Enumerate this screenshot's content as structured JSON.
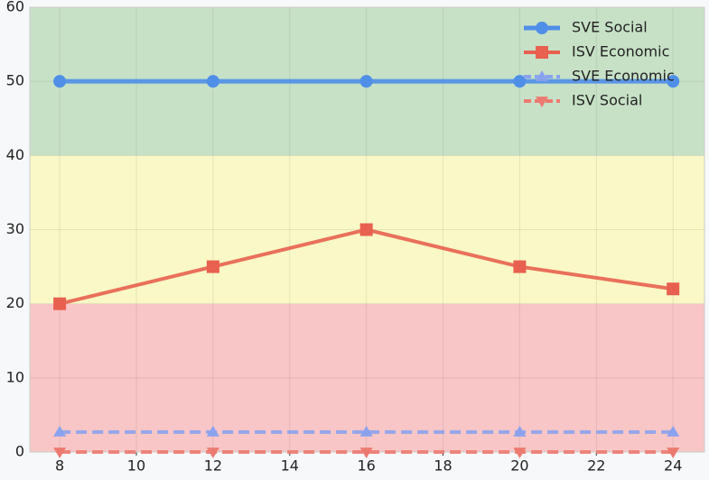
{
  "chart_data": {
    "type": "line",
    "x": [
      8,
      12,
      16,
      20,
      24
    ],
    "series": [
      {
        "name": "SVE Social",
        "color": "#4f8fe8",
        "values": [
          50,
          50,
          50,
          50,
          50
        ],
        "marker": "circle",
        "dash": false,
        "width": 5
      },
      {
        "name": "ISV Economic",
        "color": "#e8604f",
        "values": [
          20,
          25,
          30,
          25,
          22
        ],
        "marker": "square",
        "dash": false,
        "width": 4
      },
      {
        "name": "SVE Economic",
        "color": "#8aa2ee",
        "values": [
          2.7,
          2.7,
          2.7,
          2.7,
          2.7
        ],
        "marker": "triangle-up",
        "dash": true,
        "width": 4
      },
      {
        "name": "ISV Social",
        "color": "#ec7a70",
        "values": [
          0,
          0,
          0,
          0,
          0
        ],
        "marker": "triangle-down",
        "dash": true,
        "width": 4
      }
    ],
    "xlim": [
      7.22,
      24.82
    ],
    "xticks": [
      8,
      10,
      12,
      14,
      16,
      18,
      20,
      22,
      24
    ],
    "ylim": [
      0,
      60
    ],
    "yticks": [
      0,
      10,
      20,
      30,
      40,
      50,
      60
    ],
    "grid": true,
    "legend": "upper right",
    "bands": [
      {
        "from": 0,
        "to": 20,
        "color": "#f8c6c6"
      },
      {
        "from": 20,
        "to": 40,
        "color": "#f9f8c6"
      },
      {
        "from": 40,
        "to": 60,
        "color": "#c7e1c7"
      }
    ]
  }
}
